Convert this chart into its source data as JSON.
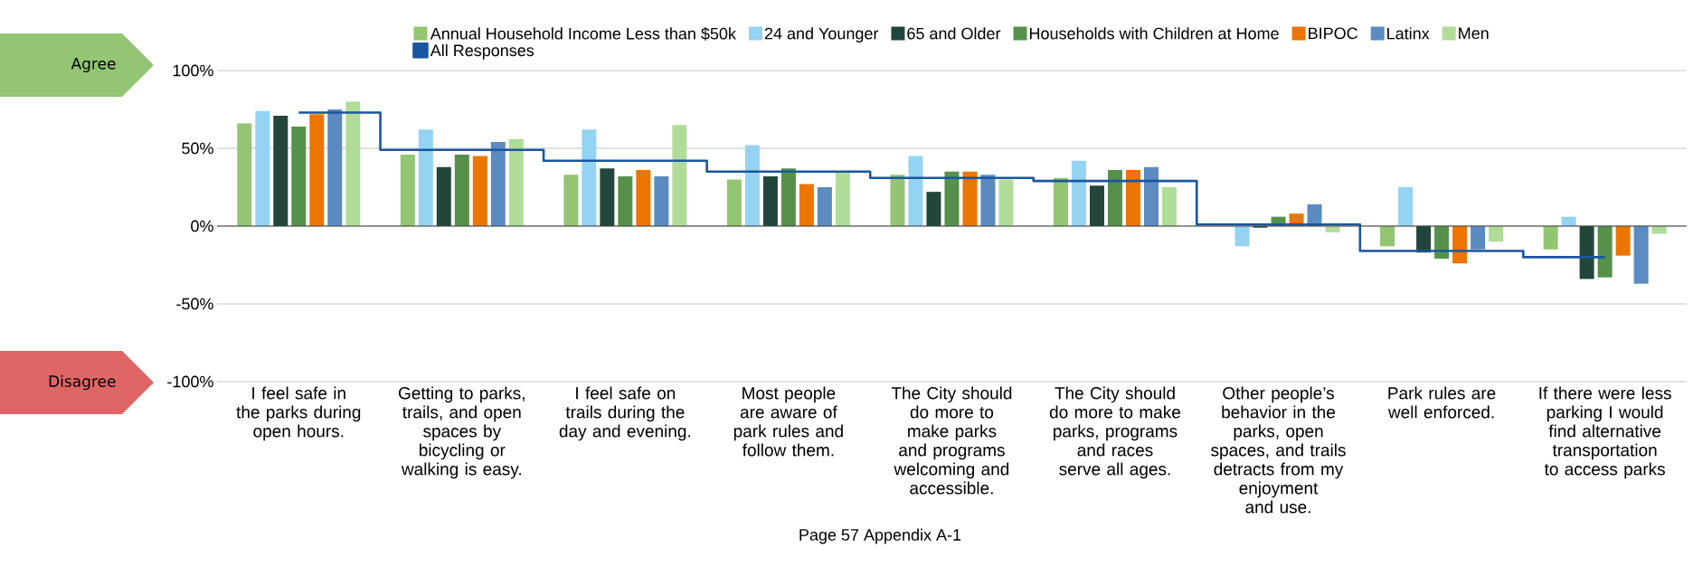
{
  "chart_data": {
    "type": "bar",
    "categories": [
      "I feel safe in the parks during open hours.",
      "Getting to parks, trails, and open spaces by bicycling or walking is easy.",
      "I feel safe on trails during the day and evening.",
      "Most people are aware of park rules and follow them.",
      "The City should do more to make parks and programs welcoming and accessible.",
      "The City should do more to make parks, programs and races serve all ages.",
      "Other people’s behavior in the parks, open spaces, and trails detracts from my enjoyment and use.",
      "Park rules are well enforced.",
      "If there were less parking I would find alternative transportation to access parks"
    ],
    "series": [
      {
        "name": "Annual Household Income Less than $50k",
        "color": "#93c572",
        "values": [
          66,
          46,
          33,
          30,
          33,
          31,
          0,
          -13,
          -15
        ]
      },
      {
        "name": "24 and Younger",
        "color": "#94d3f2",
        "values": [
          74,
          62,
          62,
          52,
          45,
          42,
          -13,
          25,
          6
        ]
      },
      {
        "name": "65 and Older",
        "color": "#22463b",
        "values": [
          71,
          38,
          37,
          32,
          22,
          26,
          -1,
          -17,
          -34
        ]
      },
      {
        "name": "Households with Children at Home",
        "color": "#55914a",
        "values": [
          64,
          46,
          32,
          37,
          35,
          36,
          6,
          -21,
          -33
        ]
      },
      {
        "name": "BIPOC",
        "color": "#eb7500",
        "values": [
          72,
          45,
          36,
          27,
          35,
          36,
          8,
          -24,
          -19
        ]
      },
      {
        "name": "Latinx",
        "color": "#5b8bc0",
        "values": [
          75,
          54,
          32,
          25,
          33,
          38,
          14,
          -15,
          -37
        ]
      },
      {
        "name": "Men",
        "color": "#b0dc98",
        "values": [
          80,
          56,
          65,
          35,
          30,
          25,
          -4,
          -10,
          -5
        ]
      },
      {
        "name": "All Responses",
        "color": "#1a56a0",
        "type": "step",
        "values": [
          73,
          49,
          42,
          35,
          31,
          29,
          1,
          -16,
          -20
        ]
      }
    ],
    "ylim": [
      -100,
      100
    ],
    "yticks": [
      {
        "value": -100,
        "label": "-100%"
      },
      {
        "value": -50,
        "label": "-50%"
      },
      {
        "value": 0,
        "label": "0%"
      },
      {
        "value": 50,
        "label": "50%"
      },
      {
        "value": 100,
        "label": "100%"
      }
    ],
    "grid": "y",
    "legend": "top",
    "annotations": [
      "Agree",
      "Disagree",
      "Page 57  Appendix A-1"
    ]
  }
}
